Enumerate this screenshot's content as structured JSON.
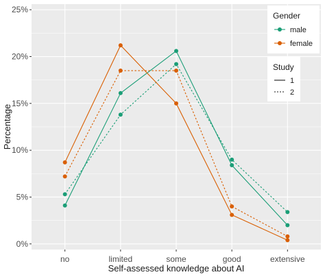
{
  "chart_data": {
    "type": "line",
    "title": "",
    "xlabel": "Self-assessed knowledge about AI",
    "ylabel": "Percentage",
    "categories": [
      "no",
      "limited",
      "some",
      "good",
      "extensive"
    ],
    "ylim": [
      -0.6,
      25.6
    ],
    "y_ticks": [
      0,
      5,
      10,
      15,
      20,
      25
    ],
    "y_tick_labels": [
      "0%",
      "5%",
      "10%",
      "15%",
      "20%",
      "25%"
    ],
    "grid": true,
    "series": [
      {
        "gender": "male",
        "study": "1",
        "color": "#1b9e77",
        "linetype": "solid",
        "values": [
          4.1,
          16.1,
          20.6,
          8.4,
          2.0
        ]
      },
      {
        "gender": "male",
        "study": "2",
        "color": "#1b9e77",
        "linetype": "dotted",
        "values": [
          5.3,
          13.8,
          19.2,
          9.0,
          3.4
        ]
      },
      {
        "gender": "female",
        "study": "1",
        "color": "#d95f02",
        "linetype": "solid",
        "values": [
          8.7,
          21.2,
          15.0,
          3.1,
          0.4
        ]
      },
      {
        "gender": "female",
        "study": "2",
        "color": "#d95f02",
        "linetype": "dotted",
        "values": [
          7.2,
          18.5,
          18.5,
          4.0,
          0.8
        ]
      }
    ],
    "legend": {
      "placement": "top-right",
      "gender_title": "Gender",
      "gender_items": [
        {
          "label": "male",
          "color": "#1b9e77"
        },
        {
          "label": "female",
          "color": "#d95f02"
        }
      ],
      "study_title": "Study",
      "study_items": [
        {
          "label": "1",
          "linetype": "solid"
        },
        {
          "label": "2",
          "linetype": "dotted"
        }
      ]
    }
  }
}
